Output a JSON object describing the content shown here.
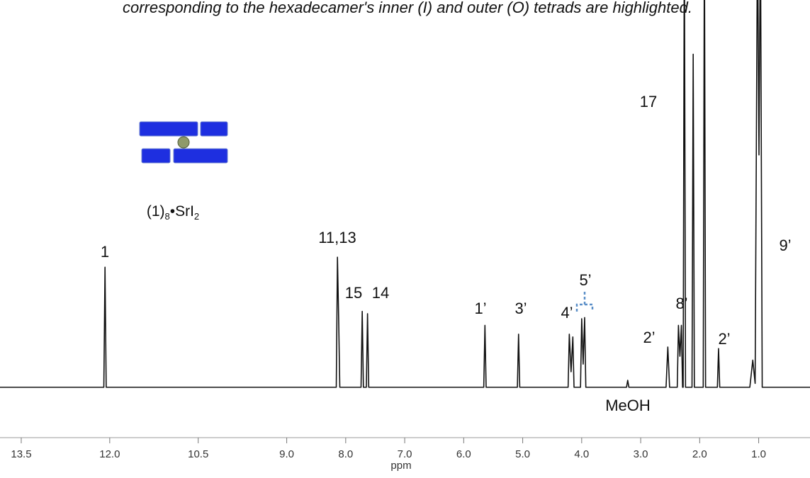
{
  "chart_data": {
    "type": "line",
    "title": "corresponding to the hexadecamer's inner (I) and outer (O) tetrads are highlighted.",
    "x_label": "ppm",
    "x": [
      13.86,
      12.1,
      12.08,
      12.06,
      8.16,
      8.14,
      8.12,
      8.1,
      7.74,
      7.72,
      7.7,
      7.65,
      7.63,
      7.61,
      5.66,
      5.64,
      5.62,
      5.09,
      5.07,
      5.05,
      4.23,
      4.21,
      4.18,
      4.15,
      4.13,
      4.02,
      4.0,
      3.975,
      3.95,
      3.93,
      3.24,
      3.22,
      3.2,
      2.57,
      2.54,
      2.51,
      2.38,
      2.36,
      2.335,
      2.31,
      2.29,
      2.28,
      2.26,
      2.24,
      2.13,
      2.11,
      2.09,
      1.94,
      1.92,
      1.9,
      1.7,
      1.68,
      1.66,
      1.15,
      1.1,
      1.06,
      1.02,
      0.995,
      0.97,
      0.94,
      0.13
    ],
    "values": [
      0,
      0,
      31,
      0,
      0,
      33.6,
      18,
      0,
      0,
      19.6,
      0,
      0,
      19,
      0,
      0,
      16,
      0,
      0,
      13.7,
      0,
      0,
      13.7,
      4,
      13,
      0,
      0,
      17.7,
      6,
      18,
      0,
      0,
      1.8,
      0,
      0,
      10.4,
      0,
      0,
      16,
      8,
      16,
      0,
      0,
      120,
      0,
      0,
      86,
      0,
      0,
      120,
      0,
      0,
      10,
      0,
      0,
      7,
      1,
      120,
      60,
      120,
      0,
      0
    ],
    "color": "#111111",
    "xlim": [
      13.86,
      0.13
    ],
    "ylim": [
      -2.4,
      100
    ],
    "xticks": [
      13.5,
      {
        "value": 12,
        "label": "12.0"
      },
      10.5,
      {
        "value": 9,
        "label": "9.0"
      },
      {
        "value": 8,
        "label": "8.0"
      },
      {
        "value": 7,
        "label": "7.0"
      },
      {
        "value": 6,
        "label": "6.0"
      },
      {
        "value": 5,
        "label": "5.0"
      },
      {
        "value": 4,
        "label": "4.0"
      },
      {
        "value": 3,
        "label": "3.0"
      },
      {
        "value": 2,
        "label": "2.0"
      },
      {
        "value": 1,
        "label": "1.0"
      }
    ],
    "annotations": [
      "1",
      "11,13",
      "15",
      "14",
      "1’",
      "3’",
      "4’",
      "5’",
      "2’",
      "17",
      "8’",
      "2’",
      "9’",
      "MeOH"
    ],
    "compound_label": {
      "prefix": "(1)",
      "sub1": "8",
      "middle": "•SrI",
      "sub2": "2"
    }
  }
}
